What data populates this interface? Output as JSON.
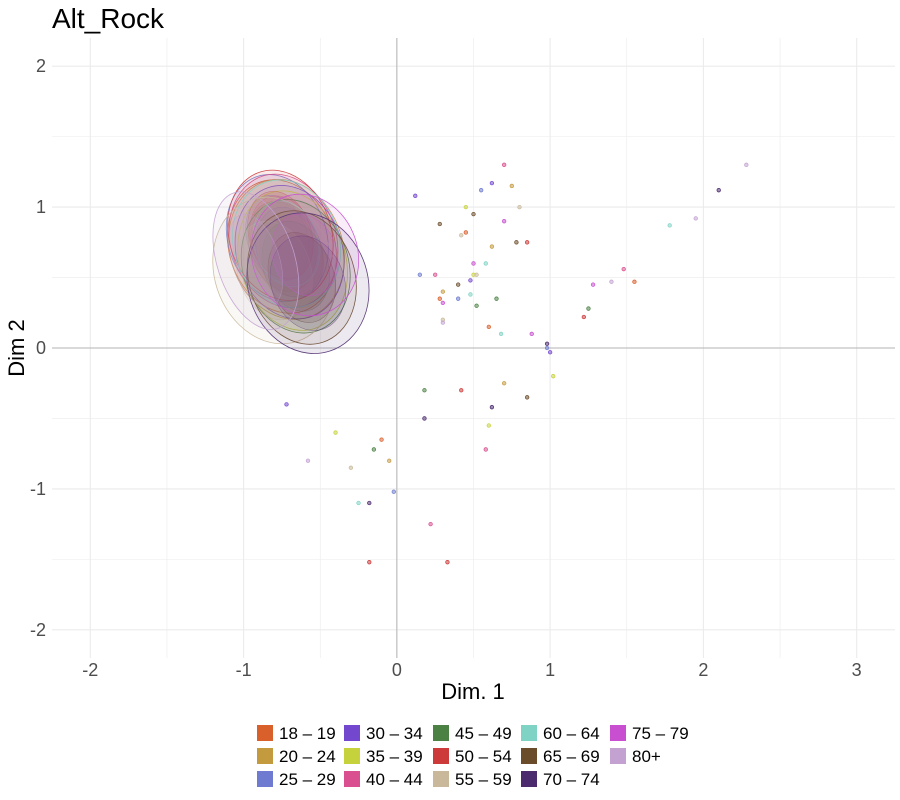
{
  "chart_data": {
    "type": "scatter",
    "title": "Alt_Rock",
    "xlabel": "Dim. 1",
    "ylabel": "Dim 2",
    "xlim": [
      -2.25,
      3.25
    ],
    "ylim": [
      -2.2,
      2.2
    ],
    "x_ticks": [
      -2,
      -1,
      0,
      1,
      2,
      3
    ],
    "y_ticks": [
      -2,
      -1,
      0,
      1,
      2
    ],
    "x_tick_labels": [
      "-2",
      "-1",
      "0",
      "1",
      "2",
      "3"
    ],
    "y_tick_labels": [
      "-2",
      "-1",
      "0",
      "1",
      "2"
    ],
    "grid": true,
    "legend_position": "bottom",
    "legend_columns": 6,
    "groups": [
      {
        "name": "18 – 19",
        "color": "#d95f2b",
        "center": [
          -0.75,
          0.72
        ],
        "spread": [
          0.3,
          0.42
        ],
        "points": [
          [
            0.45,
            0.82
          ],
          [
            -0.1,
            -0.65
          ],
          [
            0.28,
            0.35
          ],
          [
            1.55,
            0.47
          ],
          [
            0.6,
            0.15
          ]
        ]
      },
      {
        "name": "20 – 24",
        "color": "#c49a3f",
        "center": [
          -0.72,
          0.7
        ],
        "spread": [
          0.32,
          0.44
        ],
        "points": [
          [
            0.75,
            1.15
          ],
          [
            0.62,
            0.72
          ],
          [
            0.3,
            0.4
          ],
          [
            -0.05,
            -0.8
          ],
          [
            0.7,
            -0.25
          ]
        ]
      },
      {
        "name": "25 – 29",
        "color": "#6e7bd0",
        "center": [
          -0.78,
          0.78
        ],
        "spread": [
          0.28,
          0.4
        ],
        "points": [
          [
            0.55,
            1.12
          ],
          [
            0.4,
            0.35
          ],
          [
            0.15,
            0.52
          ],
          [
            0.98,
            0.0
          ],
          [
            -0.02,
            -1.02
          ]
        ]
      },
      {
        "name": "30 – 34",
        "color": "#7447cf",
        "center": [
          -0.7,
          0.68
        ],
        "spread": [
          0.3,
          0.42
        ],
        "points": [
          [
            0.12,
            1.08
          ],
          [
            0.62,
            1.17
          ],
          [
            1.0,
            -0.03
          ],
          [
            0.48,
            0.48
          ],
          [
            -0.72,
            -0.4
          ]
        ]
      },
      {
        "name": "35 – 39",
        "color": "#c6d23c",
        "center": [
          -0.68,
          0.62
        ],
        "spread": [
          0.3,
          0.44
        ],
        "points": [
          [
            0.45,
            1.0
          ],
          [
            0.5,
            0.52
          ],
          [
            0.6,
            -0.55
          ],
          [
            -0.4,
            -0.6
          ],
          [
            1.02,
            -0.2
          ]
        ]
      },
      {
        "name": "40 – 44",
        "color": "#d94f8f",
        "center": [
          -0.74,
          0.76
        ],
        "spread": [
          0.3,
          0.42
        ],
        "points": [
          [
            0.7,
            1.3
          ],
          [
            0.22,
            -1.25
          ],
          [
            0.58,
            -0.72
          ],
          [
            0.25,
            0.52
          ],
          [
            1.48,
            0.56
          ]
        ]
      },
      {
        "name": "45 – 49",
        "color": "#4b8244",
        "center": [
          -0.66,
          0.58
        ],
        "spread": [
          0.3,
          0.42
        ],
        "points": [
          [
            0.65,
            0.35
          ],
          [
            -0.15,
            -0.72
          ],
          [
            0.52,
            0.3
          ],
          [
            0.18,
            -0.3
          ],
          [
            1.25,
            0.28
          ]
        ]
      },
      {
        "name": "50 – 54",
        "color": "#cc3a3a",
        "center": [
          -0.76,
          0.8
        ],
        "spread": [
          0.29,
          0.41
        ],
        "points": [
          [
            0.85,
            0.75
          ],
          [
            -0.18,
            -1.52
          ],
          [
            0.33,
            -1.52
          ],
          [
            1.22,
            0.22
          ],
          [
            0.42,
            -0.3
          ]
        ]
      },
      {
        "name": "55 – 59",
        "color": "#c9b89a",
        "center": [
          -0.8,
          0.55
        ],
        "spread": [
          0.34,
          0.46
        ],
        "points": [
          [
            0.3,
            0.2
          ],
          [
            0.52,
            0.52
          ],
          [
            -0.3,
            -0.85
          ],
          [
            0.8,
            1.0
          ],
          [
            0.42,
            0.8
          ]
        ]
      },
      {
        "name": "60 – 64",
        "color": "#7fd3c4",
        "center": [
          -0.72,
          0.74
        ],
        "spread": [
          0.3,
          0.4
        ],
        "points": [
          [
            0.68,
            0.1
          ],
          [
            1.78,
            0.87
          ],
          [
            -0.25,
            -1.1
          ],
          [
            0.48,
            0.38
          ],
          [
            0.58,
            0.6
          ]
        ]
      },
      {
        "name": "65 – 69",
        "color": "#6b4c2a",
        "center": [
          -0.62,
          0.5
        ],
        "spread": [
          0.3,
          0.42
        ],
        "points": [
          [
            0.28,
            0.88
          ],
          [
            0.5,
            0.95
          ],
          [
            0.4,
            0.45
          ],
          [
            0.78,
            0.75
          ],
          [
            0.85,
            -0.35
          ]
        ]
      },
      {
        "name": "70 – 74",
        "color": "#4b2a6e",
        "center": [
          -0.58,
          0.46
        ],
        "spread": [
          0.34,
          0.44
        ],
        "points": [
          [
            2.1,
            1.12
          ],
          [
            0.62,
            -0.42
          ],
          [
            -0.18,
            -1.1
          ],
          [
            0.18,
            -0.5
          ],
          [
            0.98,
            0.03
          ]
        ]
      },
      {
        "name": "75 – 79",
        "color": "#c850d0",
        "center": [
          -0.6,
          0.66
        ],
        "spread": [
          0.3,
          0.38
        ],
        "points": [
          [
            1.28,
            0.45
          ],
          [
            0.7,
            0.9
          ],
          [
            0.3,
            0.32
          ],
          [
            0.5,
            0.6
          ],
          [
            0.88,
            0.1
          ]
        ]
      },
      {
        "name": "80+",
        "color": "#c3a2d2",
        "center": [
          -0.92,
          0.62
        ],
        "spread": [
          0.22,
          0.44
        ],
        "points": [
          [
            2.28,
            1.3
          ],
          [
            1.95,
            0.92
          ],
          [
            0.3,
            0.18
          ],
          [
            -0.58,
            -0.8
          ],
          [
            1.4,
            0.47
          ]
        ]
      }
    ]
  }
}
